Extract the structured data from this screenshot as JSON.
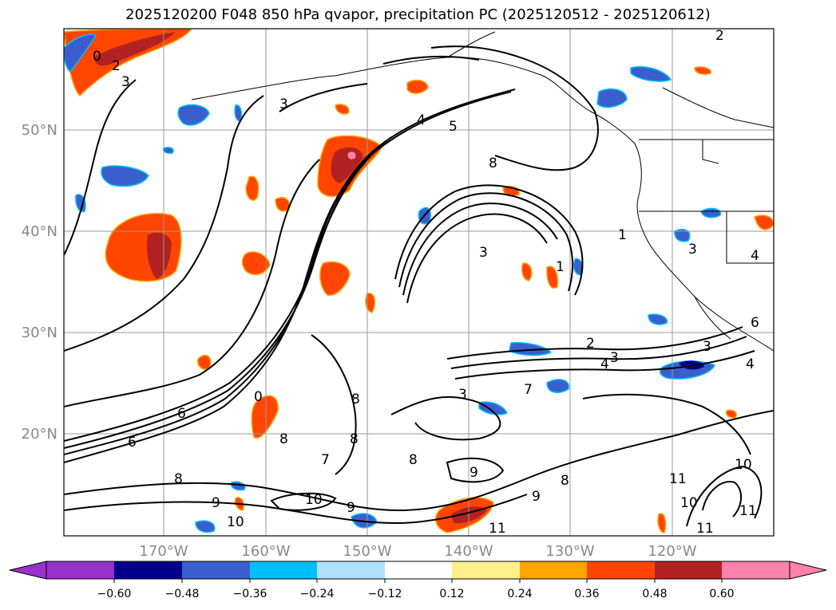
{
  "title": "2025120200 F048 850 hPa qvapor, precipitation PC (2025120512 - 2025120612)",
  "map": {
    "lat_labels": [
      "50°N",
      "40°N",
      "30°N",
      "20°N"
    ],
    "lon_labels": [
      "170°W",
      "160°W",
      "150°W",
      "140°W",
      "130°W",
      "120°W"
    ],
    "contour_labels": [
      "0",
      "2",
      "3",
      "3",
      "4",
      "5",
      "8",
      "3",
      "1",
      "1",
      "2",
      "3",
      "4",
      "7",
      "3",
      "6",
      "6",
      "0",
      "8",
      "8",
      "8",
      "7",
      "8",
      "8",
      "9",
      "10",
      "9",
      "8",
      "10",
      "11",
      "10",
      "11",
      "9",
      "10",
      "11",
      "11",
      "3",
      "4",
      "4",
      "3",
      "6",
      "2",
      "9"
    ]
  },
  "colorbar": {
    "ticks": [
      "−0.60",
      "−0.48",
      "−0.36",
      "−0.24",
      "−0.12",
      "0.12",
      "0.24",
      "0.36",
      "0.48",
      "0.60"
    ],
    "colors": [
      "#9932cc",
      "#00008b",
      "#3a5fcd",
      "#00bfff",
      "#b0e0ff",
      "#ffffff",
      "#fff08c",
      "#ffa500",
      "#ff4500",
      "#b22222",
      "#ff82ab"
    ],
    "extend": "both"
  }
}
